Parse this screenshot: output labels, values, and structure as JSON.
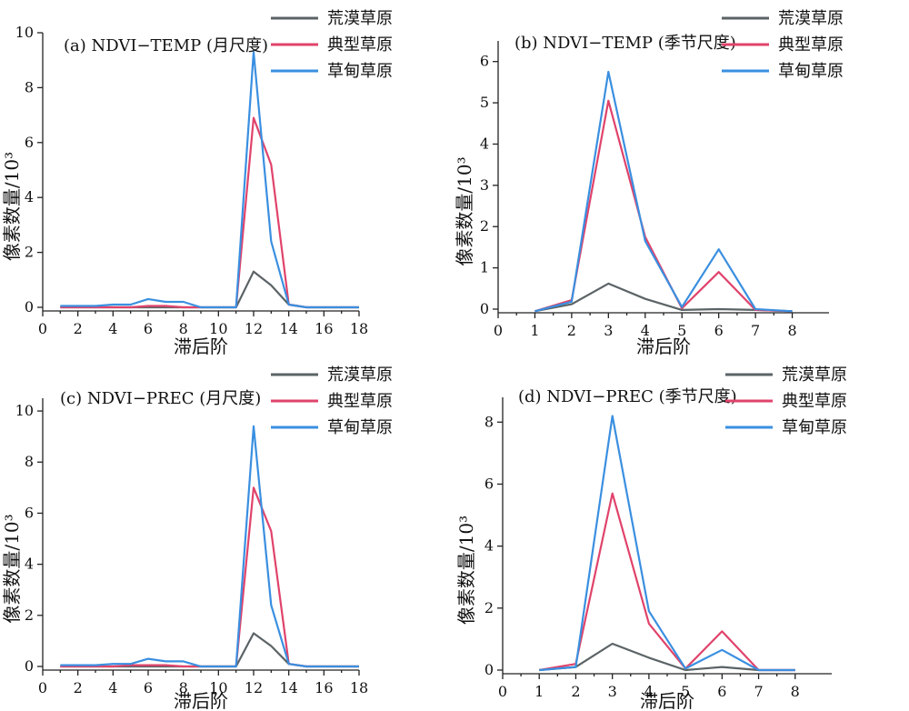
{
  "colors": {
    "desert": "#5b6366",
    "typical": "#e0436b",
    "meadow": "#3a8fe0"
  },
  "chart_data": [
    {
      "type": "line",
      "title": "(a) NDVI−TEMP (月尺度)",
      "xlabel": "滞后阶",
      "ylabel": "像素数量/10³",
      "xlim": [
        0,
        18
      ],
      "ylim": [
        0,
        10
      ],
      "xticks": [
        0,
        2,
        4,
        6,
        8,
        10,
        12,
        14,
        16,
        18
      ],
      "yticks": [
        0,
        2,
        4,
        6,
        8,
        10
      ],
      "legend": "top-right",
      "x": [
        1,
        2,
        3,
        4,
        5,
        6,
        7,
        8,
        9,
        10,
        11,
        12,
        13,
        14,
        15,
        16,
        17,
        18
      ],
      "series": [
        {
          "name": "荒漠草原",
          "color_key": "desert",
          "values": [
            0,
            0,
            0,
            0,
            0,
            0,
            0,
            0,
            0,
            0,
            0,
            1.3,
            0.8,
            0.1,
            0,
            0,
            0,
            0
          ]
        },
        {
          "name": "典型草原",
          "color_key": "typical",
          "values": [
            0,
            0,
            0,
            0,
            0,
            0.05,
            0.05,
            0,
            0,
            0,
            0,
            6.9,
            5.2,
            0.1,
            0,
            0,
            0,
            0
          ]
        },
        {
          "name": "草甸草原",
          "color_key": "meadow",
          "values": [
            0.05,
            0.05,
            0.05,
            0.1,
            0.1,
            0.3,
            0.2,
            0.2,
            0,
            0,
            0,
            9.3,
            2.4,
            0.1,
            0,
            0,
            0,
            0
          ]
        }
      ]
    },
    {
      "type": "line",
      "title": "(b) NDVI−TEMP (季节尺度)",
      "xlabel": "滞后阶",
      "ylabel": "像素数量/10³",
      "xlim": [
        0,
        9
      ],
      "ylim": [
        0,
        6.5
      ],
      "xticks": [
        0,
        1,
        2,
        3,
        4,
        5,
        6,
        7,
        8
      ],
      "yticks": [
        0,
        1,
        2,
        3,
        4,
        5,
        6
      ],
      "legend": "top-right",
      "x": [
        1,
        2,
        3,
        4,
        5,
        6,
        7,
        8
      ],
      "series": [
        {
          "name": "荒漠草原",
          "color_key": "desert",
          "values": [
            -0.05,
            0.12,
            0.62,
            0.25,
            -0.02,
            0,
            -0.02,
            -0.05
          ]
        },
        {
          "name": "典型草原",
          "color_key": "typical",
          "values": [
            -0.05,
            0.22,
            5.05,
            1.75,
            0.02,
            0.9,
            -0.02,
            -0.05
          ]
        },
        {
          "name": "草甸草原",
          "color_key": "meadow",
          "values": [
            -0.05,
            0.18,
            5.75,
            1.65,
            0.05,
            1.45,
            0,
            -0.05
          ]
        }
      ]
    },
    {
      "type": "line",
      "title": "(c) NDVI−PREC (月尺度)",
      "xlabel": "滞后阶",
      "ylabel": "像素数量/10³",
      "xlim": [
        0,
        18
      ],
      "ylim": [
        0,
        10.5
      ],
      "xticks": [
        0,
        2,
        4,
        6,
        8,
        10,
        12,
        14,
        16,
        18
      ],
      "yticks": [
        0,
        2,
        4,
        6,
        8,
        10
      ],
      "legend": "top-right",
      "x": [
        1,
        2,
        3,
        4,
        5,
        6,
        7,
        8,
        9,
        10,
        11,
        12,
        13,
        14,
        15,
        16,
        17,
        18
      ],
      "series": [
        {
          "name": "荒漠草原",
          "color_key": "desert",
          "values": [
            0,
            0,
            0,
            0,
            0,
            0,
            0,
            0,
            0,
            0,
            0,
            1.3,
            0.8,
            0.1,
            0,
            0,
            0,
            0
          ]
        },
        {
          "name": "典型草原",
          "color_key": "typical",
          "values": [
            0,
            0,
            0,
            0,
            0.05,
            0.05,
            0.05,
            0,
            0,
            0,
            0,
            7.0,
            5.3,
            0.1,
            0,
            0,
            0,
            0
          ]
        },
        {
          "name": "草甸草原",
          "color_key": "meadow",
          "values": [
            0.05,
            0.05,
            0.05,
            0.1,
            0.1,
            0.3,
            0.2,
            0.2,
            0,
            0,
            0,
            9.4,
            2.4,
            0.1,
            0,
            0,
            0,
            0
          ]
        }
      ]
    },
    {
      "type": "line",
      "title": "(d) NDVI−PREC (季节尺度)",
      "xlabel": "滞后阶",
      "ylabel": "像素数量/10³",
      "xlim": [
        0,
        9
      ],
      "ylim": [
        0,
        8.8
      ],
      "xticks": [
        0,
        1,
        2,
        3,
        4,
        5,
        6,
        7,
        8
      ],
      "yticks": [
        0,
        2,
        4,
        6,
        8
      ],
      "legend": "top-right",
      "x": [
        1,
        2,
        3,
        4,
        5,
        6,
        7,
        8
      ],
      "series": [
        {
          "name": "荒漠草原",
          "color_key": "desert",
          "values": [
            0,
            0.1,
            0.85,
            0.4,
            0,
            0.1,
            0,
            0
          ]
        },
        {
          "name": "典型草原",
          "color_key": "typical",
          "values": [
            0,
            0.2,
            5.7,
            1.5,
            0.05,
            1.25,
            0,
            0
          ]
        },
        {
          "name": "草甸草原",
          "color_key": "meadow",
          "values": [
            0,
            0.1,
            8.2,
            1.9,
            0.05,
            0.65,
            0,
            0
          ]
        }
      ]
    }
  ]
}
